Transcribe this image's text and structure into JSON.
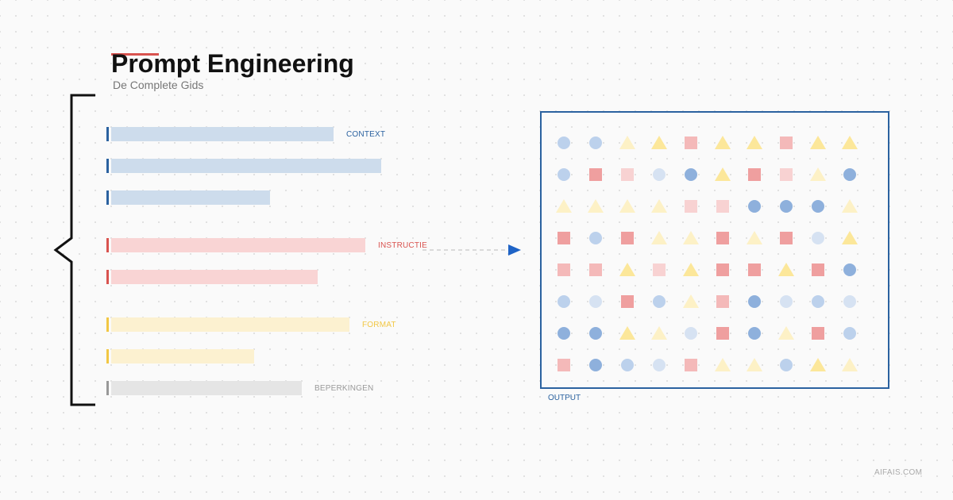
{
  "title": "Prompt Engineering",
  "subtitle": "De Complete Gids",
  "colors": {
    "context": "#2b62a0",
    "context_bar": "#cddcec",
    "instructie": "#d9534f",
    "instructie_bar": "#f9d4d4",
    "format": "#f2c744",
    "format_bar": "#fcf1d0",
    "beperkingen": "#999999",
    "beperkingen_bar": "#e5e5e5",
    "output": "#2b62a0"
  },
  "groups": {
    "context": "CONTEXT",
    "instructie": "INSTRUCTIE",
    "format": "FORMAT",
    "beperkingen": "BEPERKINGEN"
  },
  "output_label": "OUTPUT",
  "footer": "AIFAIS.COM",
  "output_grid": {
    "columns": 10,
    "rows": [
      [
        "circle-blue-light",
        "circle-blue-light",
        "triangle-yellow-pale",
        "triangle-yellow",
        "square-red-light",
        "triangle-yellow",
        "triangle-yellow",
        "square-red-light",
        "triangle-yellow",
        "triangle-yellow"
      ],
      [
        "circle-blue-light",
        "square-red",
        "square-red-pale",
        "circle-blue-pale",
        "circle-blue",
        "triangle-yellow",
        "square-red",
        "square-red-pale",
        "triangle-yellow-pale",
        "circle-blue"
      ],
      [
        "triangle-yellow-pale",
        "triangle-yellow-pale",
        "triangle-yellow-pale",
        "triangle-yellow-pale",
        "square-red-pale",
        "square-red-pale",
        "circle-blue",
        "circle-blue",
        "circle-blue",
        "triangle-yellow-pale"
      ],
      [
        "square-red",
        "circle-blue-light",
        "square-red",
        "triangle-yellow-pale",
        "triangle-yellow-pale",
        "square-red",
        "triangle-yellow-pale",
        "square-red",
        "circle-blue-pale",
        "triangle-yellow"
      ],
      [
        "square-red-light",
        "square-red-light",
        "triangle-yellow",
        "square-red-pale",
        "triangle-yellow",
        "square-red",
        "square-red",
        "triangle-yellow",
        "square-red",
        "circle-blue"
      ],
      [
        "circle-blue-light",
        "circle-blue-pale",
        "square-red",
        "circle-blue-light",
        "triangle-yellow-pale",
        "square-red-light",
        "circle-blue",
        "circle-blue-pale",
        "circle-blue-light",
        "circle-blue-pale"
      ],
      [
        "circle-blue",
        "circle-blue",
        "triangle-yellow",
        "triangle-yellow-pale",
        "circle-blue-pale",
        "square-red",
        "circle-blue",
        "triangle-yellow-pale",
        "square-red",
        "circle-blue-light"
      ],
      [
        "square-red-light",
        "circle-blue",
        "circle-blue-light",
        "circle-blue-pale",
        "square-red-light",
        "triangle-yellow-pale",
        "triangle-yellow-pale",
        "circle-blue-light",
        "triangle-yellow",
        "triangle-yellow-pale"
      ]
    ]
  }
}
